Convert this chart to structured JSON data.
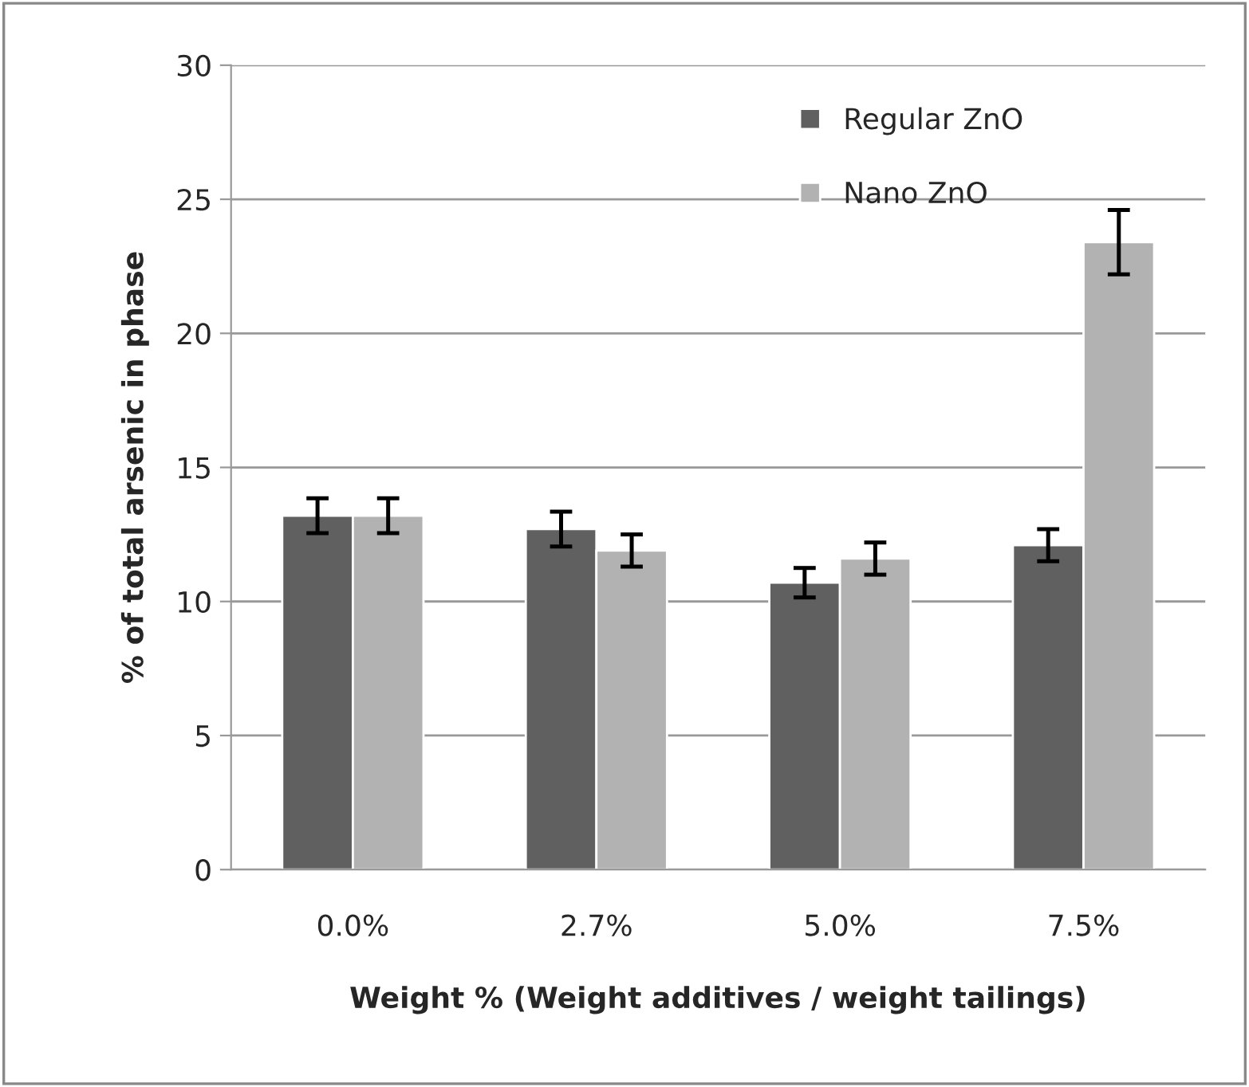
{
  "chart_data": {
    "type": "bar",
    "xlabel": "Weight % (Weight additives / weight tailings)",
    "ylabel": "% of total arsenic in phase",
    "categories": [
      "0.0%",
      "2.7%",
      "5.0%",
      "7.5%"
    ],
    "series": [
      {
        "name": "Regular ZnO",
        "color": "#606060",
        "values": [
          13.2,
          12.7,
          10.7,
          12.1
        ],
        "errors": [
          0.65,
          0.65,
          0.55,
          0.6
        ]
      },
      {
        "name": "Nano ZnO",
        "color": "#b2b2b2",
        "values": [
          13.2,
          11.9,
          11.6,
          23.4
        ],
        "errors": [
          0.65,
          0.6,
          0.6,
          1.2
        ]
      }
    ],
    "ylim": [
      0,
      30
    ],
    "yticks": [
      0,
      5,
      10,
      15,
      20,
      25,
      30
    ],
    "grid": "y",
    "legend": "top right"
  }
}
